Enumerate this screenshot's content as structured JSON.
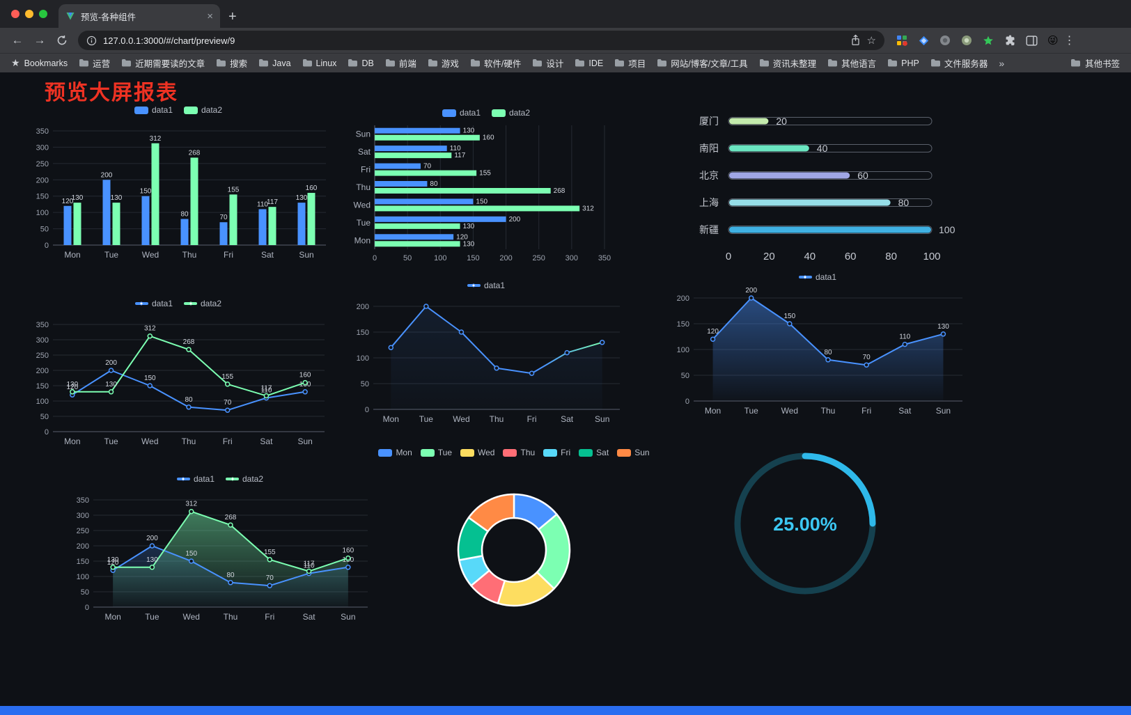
{
  "browser": {
    "tab_title": "预览-各种组件",
    "url": "127.0.0.1:3000/#/chart/preview/9",
    "avatar_emoji": "😜",
    "bookmarks_bar": {
      "label": "Bookmarks",
      "folders": [
        "运营",
        "近期需要读的文章",
        "搜索",
        "Java",
        "Linux",
        "DB",
        "前端",
        "游戏",
        "软件/硬件",
        "设计",
        "IDE",
        "项目",
        "网站/博客/文章/工具",
        "资讯未整理",
        "其他语言",
        "PHP",
        "文件服务器"
      ],
      "overflow": "»",
      "other": "其他书签"
    }
  },
  "page": {
    "title": "预览大屏报表"
  },
  "chart_data": [
    {
      "id": "bar-grouped",
      "type": "bar",
      "orientation": "vertical",
      "categories": [
        "Mon",
        "Tue",
        "Wed",
        "Thu",
        "Fri",
        "Sat",
        "Sun"
      ],
      "series": [
        {
          "name": "data1",
          "color": "#4992ff",
          "values": [
            120,
            200,
            150,
            80,
            70,
            110,
            130
          ]
        },
        {
          "name": "data2",
          "color": "#7cffb2",
          "values": [
            130,
            130,
            312,
            268,
            155,
            117,
            160
          ]
        }
      ],
      "ylim": [
        0,
        350
      ],
      "ytick_step": 50,
      "value_labels": true,
      "grid": true,
      "legend_position": "top",
      "legend": [
        {
          "label": "data1",
          "color": "#4992ff",
          "type": "rect"
        },
        {
          "label": "data2",
          "color": "#7cffb2",
          "type": "rect"
        }
      ]
    },
    {
      "id": "bar-horizontal",
      "type": "bar",
      "orientation": "horizontal",
      "categories": [
        "Mon",
        "Tue",
        "Wed",
        "Thu",
        "Fri",
        "Sat",
        "Sun"
      ],
      "series": [
        {
          "name": "data1",
          "color": "#4992ff",
          "values": [
            120,
            200,
            150,
            80,
            70,
            110,
            130
          ]
        },
        {
          "name": "data2",
          "color": "#7cffb2",
          "values": [
            130,
            130,
            312,
            268,
            155,
            117,
            160
          ]
        }
      ],
      "xlim": [
        0,
        350
      ],
      "xtick_step": 50,
      "value_labels": true,
      "grid": true,
      "legend_position": "top",
      "legend": [
        {
          "label": "data1",
          "color": "#4992ff",
          "type": "rect"
        },
        {
          "label": "data2",
          "color": "#7cffb2",
          "type": "rect"
        }
      ]
    },
    {
      "id": "progress-bars",
      "type": "bar",
      "orientation": "horizontal",
      "variant": "progress",
      "categories": [
        "厦门",
        "南阳",
        "北京",
        "上海",
        "新疆"
      ],
      "values": [
        20,
        40,
        60,
        80,
        100
      ],
      "colors": [
        "#c4ebad",
        "#6be6c1",
        "#a0a7e6",
        "#96dee8",
        "#3fb1e3"
      ],
      "max": 100,
      "xticks": [
        0,
        20,
        40,
        60,
        80,
        100
      ]
    },
    {
      "id": "line-two",
      "type": "line",
      "categories": [
        "Mon",
        "Tue",
        "Wed",
        "Thu",
        "Fri",
        "Sat",
        "Sun"
      ],
      "series": [
        {
          "name": "data1",
          "color": "#4992ff",
          "values": [
            120,
            200,
            150,
            80,
            70,
            110,
            130
          ]
        },
        {
          "name": "data2",
          "color": "#7cffb2",
          "values": [
            130,
            130,
            312,
            268,
            155,
            117,
            160
          ]
        }
      ],
      "ylim": [
        0,
        350
      ],
      "ytick_step": 50,
      "value_labels": true,
      "grid": true,
      "legend": [
        {
          "label": "data1",
          "color": "#4992ff",
          "type": "line"
        },
        {
          "label": "data2",
          "color": "#7cffb2",
          "type": "line"
        }
      ]
    },
    {
      "id": "line-single",
      "type": "line",
      "categories": [
        "Mon",
        "Tue",
        "Wed",
        "Thu",
        "Fri",
        "Sat",
        "Sun"
      ],
      "series": [
        {
          "name": "data1",
          "color": "#4992ff",
          "gradient_to": "#7cffb2",
          "area": true,
          "area_opacity": 0.1,
          "values": [
            120,
            200,
            150,
            80,
            70,
            110,
            130
          ]
        }
      ],
      "ylim": [
        0,
        200
      ],
      "ytick_step": 50,
      "value_labels": false,
      "grid": true,
      "legend": [
        {
          "label": "data1",
          "color": "#4992ff",
          "type": "line"
        }
      ]
    },
    {
      "id": "area-single",
      "type": "line",
      "categories": [
        "Mon",
        "Tue",
        "Wed",
        "Thu",
        "Fri",
        "Sat",
        "Sun"
      ],
      "series": [
        {
          "name": "data1",
          "color": "#4992ff",
          "area": true,
          "area_opacity": 0.45,
          "values": [
            120,
            200,
            150,
            80,
            70,
            110,
            130
          ]
        }
      ],
      "ylim": [
        0,
        200
      ],
      "ytick_step": 50,
      "value_labels": true,
      "grid": true,
      "legend": [
        {
          "label": "data1",
          "color": "#4992ff",
          "type": "line"
        }
      ]
    },
    {
      "id": "area-two",
      "type": "line",
      "categories": [
        "Mon",
        "Tue",
        "Wed",
        "Thu",
        "Fri",
        "Sat",
        "Sun"
      ],
      "series": [
        {
          "name": "data1",
          "color": "#4992ff",
          "area": true,
          "area_opacity": 0.22,
          "values": [
            120,
            200,
            150,
            80,
            70,
            110,
            130
          ]
        },
        {
          "name": "data2",
          "color": "#7cffb2",
          "area": true,
          "area_opacity": 0.45,
          "values": [
            130,
            130,
            312,
            268,
            155,
            117,
            160
          ]
        }
      ],
      "ylim": [
        0,
        350
      ],
      "ytick_step": 50,
      "value_labels": true,
      "grid": true,
      "legend": [
        {
          "label": "data1",
          "color": "#4992ff",
          "type": "line"
        },
        {
          "label": "data2",
          "color": "#7cffb2",
          "type": "line"
        }
      ]
    },
    {
      "id": "donut",
      "type": "pie",
      "labels": [
        "Mon",
        "Tue",
        "Wed",
        "Thu",
        "Fri",
        "Sat",
        "Sun"
      ],
      "values": [
        120,
        200,
        150,
        80,
        70,
        110,
        130
      ],
      "colors": [
        "#4992ff",
        "#7cffb2",
        "#fddd60",
        "#ff6e76",
        "#58d9f9",
        "#05c091",
        "#ff8a45"
      ],
      "inner_radius_ratio": 0.57,
      "border_color": "#ffffff",
      "legend": [
        {
          "label": "Mon",
          "color": "#4992ff",
          "type": "rect"
        },
        {
          "label": "Tue",
          "color": "#7cffb2",
          "type": "rect"
        },
        {
          "label": "Wed",
          "color": "#fddd60",
          "type": "rect"
        },
        {
          "label": "Thu",
          "color": "#ff6e76",
          "type": "rect"
        },
        {
          "label": "Fri",
          "color": "#58d9f9",
          "type": "rect"
        },
        {
          "label": "Sat",
          "color": "#05c091",
          "type": "rect"
        },
        {
          "label": "Sun",
          "color": "#ff8a45",
          "type": "rect"
        }
      ]
    },
    {
      "id": "gauge",
      "type": "gauge",
      "value": 25,
      "max": 100,
      "display": "25.00%",
      "color": "#2fb9ea",
      "track_color": "#15414f",
      "text_color": "#3cc8f3"
    }
  ]
}
